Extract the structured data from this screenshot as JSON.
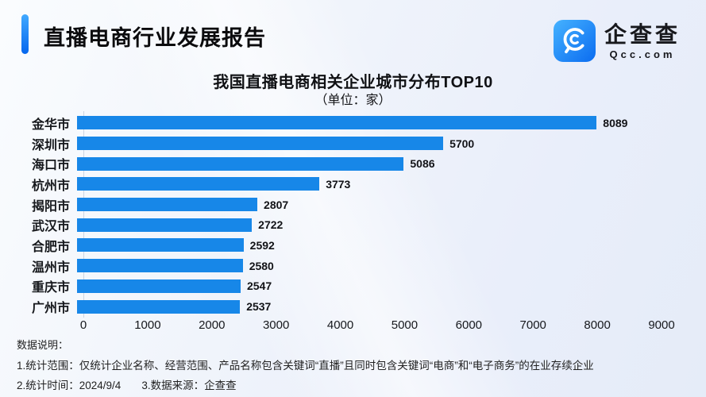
{
  "header": {
    "title": "直播电商行业发展报告",
    "logo": {
      "brand": "企查查",
      "domain": "Qcc.com",
      "icon": "qcc-magnifier-icon"
    }
  },
  "chart_data": {
    "type": "bar",
    "orientation": "horizontal",
    "title": "我国直播电商相关企业城市分布TOP10",
    "subtitle": "（单位：家）",
    "categories": [
      "金华市",
      "深圳市",
      "海口市",
      "杭州市",
      "揭阳市",
      "武汉市",
      "合肥市",
      "温州市",
      "重庆市",
      "广州市"
    ],
    "values": [
      8089,
      5700,
      5086,
      3773,
      2807,
      2722,
      2592,
      2580,
      2547,
      2537
    ],
    "xlim": [
      0,
      9000
    ],
    "x_ticks": [
      0,
      1000,
      2000,
      3000,
      4000,
      5000,
      6000,
      7000,
      8000,
      9000
    ],
    "bar_color": "#1787e8",
    "value_labels_shown": true,
    "grid": false,
    "legend": "none"
  },
  "footer": {
    "heading": "数据说明：",
    "note_scope": "1.统计范围：仅统计企业名称、经营范围、产品名称包含关键词“直播”且同时包含关键词“电商”和“电子商务”的在业存续企业",
    "note_time": "2.统计时间：2024/9/4",
    "note_source": "3.数据来源：企查查"
  },
  "colors": {
    "bar": "#1787e8",
    "accent_top": "#41a9ff",
    "accent_bottom": "#0667ee",
    "background": "#edf1fa",
    "text": "#111111"
  }
}
